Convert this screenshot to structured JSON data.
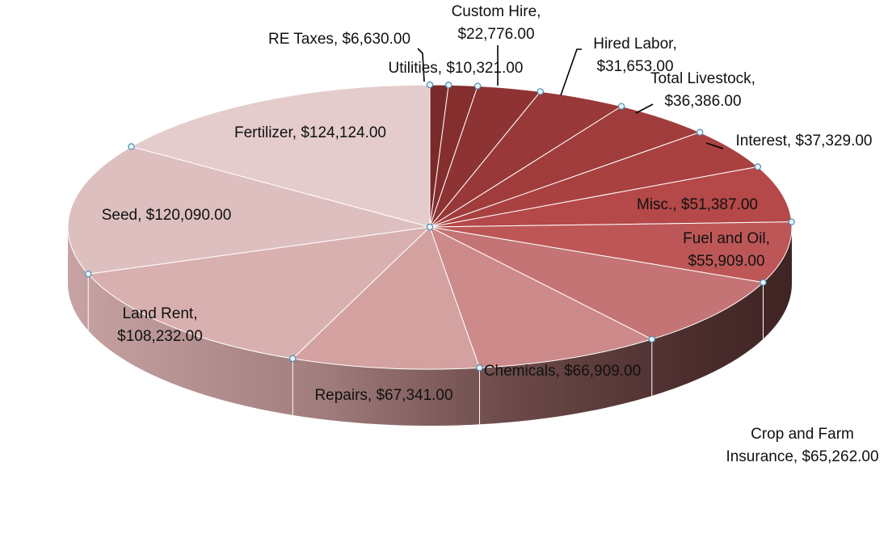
{
  "chart_data": {
    "type": "pie",
    "title": "",
    "slices": [
      {
        "label": "RE Taxes",
        "value": 6630.0,
        "value_text": "$6,630.00",
        "color": "#7a2a2a"
      },
      {
        "label": "Utilities",
        "value": 10321.0,
        "value_text": "$10,321.00",
        "color": "#842e2e"
      },
      {
        "label": "Custom Hire",
        "value": 22776.0,
        "value_text": "$22,776.00",
        "color": "#8d3333"
      },
      {
        "label": "Hired Labor",
        "value": 31653.0,
        "value_text": "$31,653.00",
        "color": "#983838"
      },
      {
        "label": "Total Livestock",
        "value": 36386.0,
        "value_text": "$36,386.00",
        "color": "#a13c3c"
      },
      {
        "label": "Interest",
        "value": 37329.0,
        "value_text": "$37,329.00",
        "color": "#aa4141"
      },
      {
        "label": "Misc.",
        "value": 51387.0,
        "value_text": "$51,387.00",
        "color": "#b54848"
      },
      {
        "label": "Fuel and Oil",
        "value": 55909.0,
        "value_text": "$55,909.00",
        "color": "#bd5757"
      },
      {
        "label": "Crop and Farm Insurance",
        "value": 65262.0,
        "value_text": "$65,262.00",
        "color": "#c47474"
      },
      {
        "label": "Chemicals",
        "value": 66909.0,
        "value_text": "$66,909.00",
        "color": "#cd8a8a"
      },
      {
        "label": "Repairs",
        "value": 67341.0,
        "value_text": "$67,341.00",
        "color": "#d4a1a1"
      },
      {
        "label": "Land Rent",
        "value": 108232.0,
        "value_text": "$108,232.00",
        "color": "#d9b0b0"
      },
      {
        "label": "Seed",
        "value": 120090.0,
        "value_text": "$120,090.00",
        "color": "#debfbf"
      },
      {
        "label": "Fertilizer",
        "value": 124124.0,
        "value_text": "$124,124.00",
        "color": "#e5cccc"
      }
    ],
    "legend": "none",
    "style": "3d-pie"
  }
}
